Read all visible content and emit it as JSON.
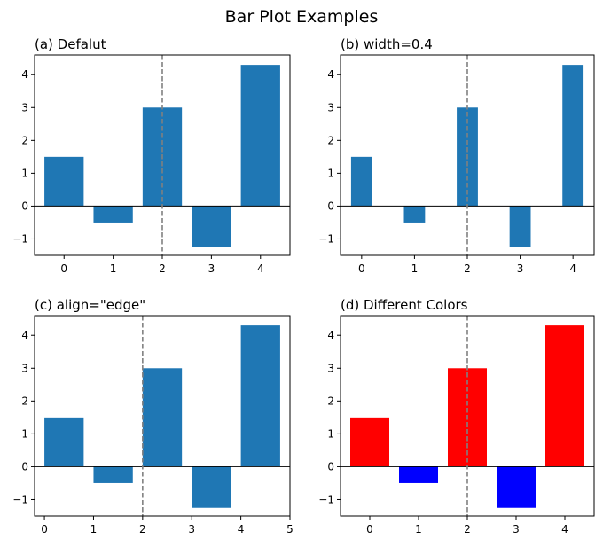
{
  "figure": {
    "title": "Bar Plot Examples"
  },
  "chart_data": [
    {
      "type": "bar",
      "title": "(a) Defalut",
      "categories": [
        "0",
        "1",
        "2",
        "3",
        "4"
      ],
      "x": [
        0,
        1,
        2,
        3,
        4
      ],
      "values": [
        1.5,
        -0.5,
        3.0,
        -1.25,
        4.3
      ],
      "width": 0.8,
      "align": "center",
      "colors": [
        "#1f77b4",
        "#1f77b4",
        "#1f77b4",
        "#1f77b4",
        "#1f77b4"
      ],
      "xlim": [
        -0.6,
        4.6
      ],
      "ylim": [
        -1.5,
        4.6
      ],
      "xticks": [
        "0",
        "1",
        "2",
        "3",
        "4"
      ],
      "yticks": [
        "−1",
        "0",
        "1",
        "2",
        "3",
        "4"
      ],
      "yticks_values": [
        -1,
        0,
        1,
        2,
        3,
        4
      ],
      "xticks_values": [
        0,
        1,
        2,
        3,
        4
      ],
      "vline_x": 2,
      "vline_color": "#808080",
      "zero_line": true,
      "grid": false
    },
    {
      "type": "bar",
      "title": "(b) width=0.4",
      "categories": [
        "0",
        "1",
        "2",
        "3",
        "4"
      ],
      "x": [
        0,
        1,
        2,
        3,
        4
      ],
      "values": [
        1.5,
        -0.5,
        3.0,
        -1.25,
        4.3
      ],
      "width": 0.4,
      "align": "center",
      "colors": [
        "#1f77b4",
        "#1f77b4",
        "#1f77b4",
        "#1f77b4",
        "#1f77b4"
      ],
      "xlim": [
        -0.4,
        4.4
      ],
      "ylim": [
        -1.5,
        4.6
      ],
      "xticks": [
        "0",
        "1",
        "2",
        "3",
        "4"
      ],
      "yticks": [
        "−1",
        "0",
        "1",
        "2",
        "3",
        "4"
      ],
      "yticks_values": [
        -1,
        0,
        1,
        2,
        3,
        4
      ],
      "xticks_values": [
        0,
        1,
        2,
        3,
        4
      ],
      "vline_x": 2,
      "vline_color": "#808080",
      "zero_line": true,
      "grid": false
    },
    {
      "type": "bar",
      "title": "(c) align=\"edge\"",
      "categories": [
        "0",
        "1",
        "2",
        "3",
        "4"
      ],
      "x": [
        0,
        1,
        2,
        3,
        4
      ],
      "values": [
        1.5,
        -0.5,
        3.0,
        -1.25,
        4.3
      ],
      "width": 0.8,
      "align": "edge",
      "colors": [
        "#1f77b4",
        "#1f77b4",
        "#1f77b4",
        "#1f77b4",
        "#1f77b4"
      ],
      "xlim": [
        -0.2,
        5.0
      ],
      "ylim": [
        -1.5,
        4.6
      ],
      "xticks": [
        "0",
        "1",
        "2",
        "3",
        "4",
        "5"
      ],
      "yticks": [
        "−1",
        "0",
        "1",
        "2",
        "3",
        "4"
      ],
      "yticks_values": [
        -1,
        0,
        1,
        2,
        3,
        4
      ],
      "xticks_values": [
        0,
        1,
        2,
        3,
        4,
        5
      ],
      "vline_x": 2,
      "vline_color": "#808080",
      "zero_line": true,
      "grid": false
    },
    {
      "type": "bar",
      "title": "(d) Different Colors",
      "categories": [
        "0",
        "1",
        "2",
        "3",
        "4"
      ],
      "x": [
        0,
        1,
        2,
        3,
        4
      ],
      "values": [
        1.5,
        -0.5,
        3.0,
        -1.25,
        4.3
      ],
      "width": 0.8,
      "align": "center",
      "colors": [
        "#ff0000",
        "#0000ff",
        "#ff0000",
        "#0000ff",
        "#ff0000"
      ],
      "xlim": [
        -0.6,
        4.6
      ],
      "ylim": [
        -1.5,
        4.6
      ],
      "xticks": [
        "0",
        "1",
        "2",
        "3",
        "4"
      ],
      "yticks": [
        "−1",
        "0",
        "1",
        "2",
        "3",
        "4"
      ],
      "yticks_values": [
        -1,
        0,
        1,
        2,
        3,
        4
      ],
      "xticks_values": [
        0,
        1,
        2,
        3,
        4
      ],
      "vline_x": 2,
      "vline_color": "#808080",
      "zero_line": true,
      "grid": false
    }
  ]
}
